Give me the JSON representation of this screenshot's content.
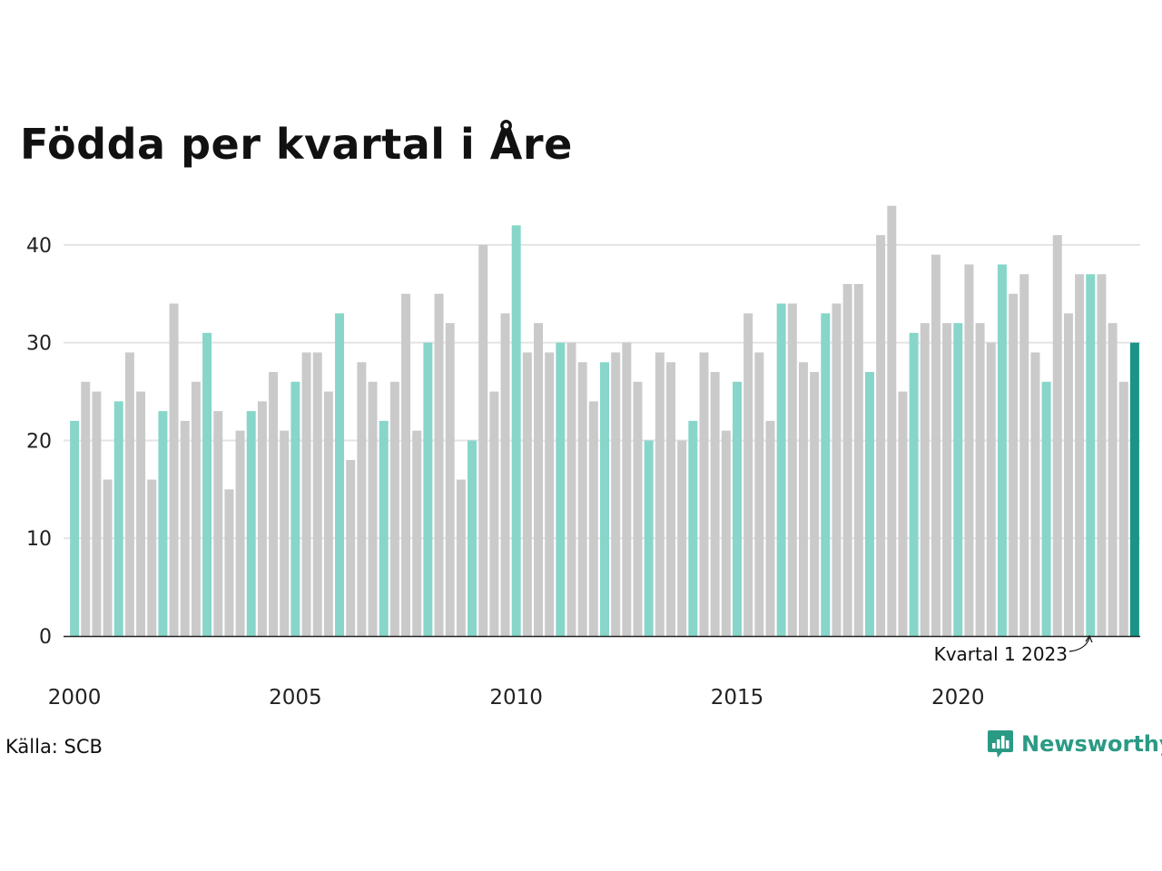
{
  "colors": {
    "highlight": "#87d6c9",
    "other": "#cacaca",
    "latest": "#1a9484",
    "grid": "#e4e4e4",
    "axis": "#222222",
    "brand": "#2b9a84"
  },
  "footer": {
    "source": "Källa: SCB",
    "brand": "Newsworthy",
    "brand_icon": "bar-chart-speech-bubble-icon"
  },
  "chart_data": {
    "type": "bar",
    "title": "Födda per kvartal i Åre",
    "xlabel": "",
    "ylabel": "",
    "ylim": [
      0,
      45
    ],
    "yticks": [
      0,
      10,
      20,
      30,
      40
    ],
    "grid": true,
    "x_tick_labels": [
      "2000",
      "2005",
      "2010",
      "2015",
      "2020"
    ],
    "annotation": "Kvartal 1 2023",
    "highlight_rule": "Kvartal 1 of each year in teal, latest quarter in dark teal",
    "categories": [
      "2000 Q1",
      "2000 Q2",
      "2000 Q3",
      "2000 Q4",
      "2001 Q1",
      "2001 Q2",
      "2001 Q3",
      "2001 Q4",
      "2002 Q1",
      "2002 Q2",
      "2002 Q3",
      "2002 Q4",
      "2003 Q1",
      "2003 Q2",
      "2003 Q3",
      "2003 Q4",
      "2004 Q1",
      "2004 Q2",
      "2004 Q3",
      "2004 Q4",
      "2005 Q1",
      "2005 Q2",
      "2005 Q3",
      "2005 Q4",
      "2006 Q1",
      "2006 Q2",
      "2006 Q3",
      "2006 Q4",
      "2007 Q1",
      "2007 Q2",
      "2007 Q3",
      "2007 Q4",
      "2008 Q1",
      "2008 Q2",
      "2008 Q3",
      "2008 Q4",
      "2009 Q1",
      "2009 Q2",
      "2009 Q3",
      "2009 Q4",
      "2010 Q1",
      "2010 Q2",
      "2010 Q3",
      "2010 Q4",
      "2011 Q1",
      "2011 Q2",
      "2011 Q3",
      "2011 Q4",
      "2012 Q1",
      "2012 Q2",
      "2012 Q3",
      "2012 Q4",
      "2013 Q1",
      "2013 Q2",
      "2013 Q3",
      "2013 Q4",
      "2014 Q1",
      "2014 Q2",
      "2014 Q3",
      "2014 Q4",
      "2015 Q1",
      "2015 Q2",
      "2015 Q3",
      "2015 Q4",
      "2016 Q1",
      "2016 Q2",
      "2016 Q3",
      "2016 Q4",
      "2017 Q1",
      "2017 Q2",
      "2017 Q3",
      "2017 Q4",
      "2018 Q1",
      "2018 Q2",
      "2018 Q3",
      "2018 Q4",
      "2019 Q1",
      "2019 Q2",
      "2019 Q3",
      "2019 Q4",
      "2020 Q1",
      "2020 Q2",
      "2020 Q3",
      "2020 Q4",
      "2021 Q1",
      "2021 Q2",
      "2021 Q3",
      "2021 Q4",
      "2022 Q1",
      "2022 Q2",
      "2022 Q3",
      "2022 Q4",
      "2023 Q1",
      "2023 Q2",
      "2023 Q3",
      "2023 Q4",
      "2024 Q1"
    ],
    "values": [
      22,
      26,
      25,
      16,
      24,
      29,
      25,
      16,
      23,
      34,
      22,
      26,
      31,
      23,
      15,
      21,
      23,
      24,
      27,
      21,
      26,
      29,
      29,
      25,
      33,
      18,
      28,
      26,
      22,
      26,
      35,
      21,
      30,
      35,
      32,
      16,
      20,
      40,
      25,
      33,
      42,
      29,
      32,
      29,
      30,
      30,
      28,
      24,
      28,
      29,
      30,
      26,
      20,
      29,
      28,
      20,
      22,
      29,
      27,
      21,
      26,
      33,
      29,
      22,
      34,
      34,
      28,
      27,
      33,
      34,
      36,
      36,
      27,
      41,
      44,
      25,
      31,
      32,
      39,
      32,
      32,
      38,
      32,
      30,
      38,
      35,
      37,
      29,
      26,
      41,
      33,
      37,
      37,
      37,
      32,
      26,
      30
    ]
  }
}
